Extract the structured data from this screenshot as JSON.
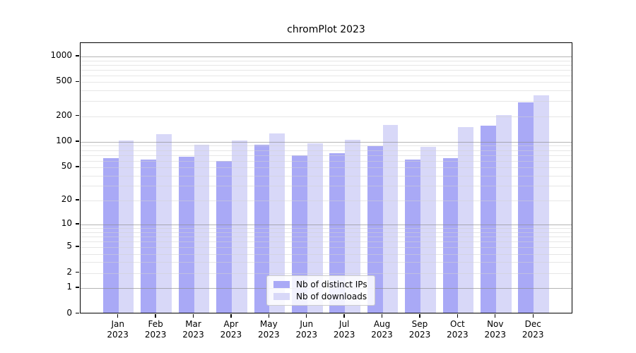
{
  "chart_data": {
    "type": "bar",
    "title": "chromPlot 2023",
    "categories": [
      "Jan 2023",
      "Feb 2023",
      "Mar 2023",
      "Apr 2023",
      "May 2023",
      "Jun 2023",
      "Jul 2023",
      "Aug 2023",
      "Sep 2023",
      "Oct 2023",
      "Nov 2023",
      "Dec 2023"
    ],
    "x_tick_line1": [
      "Jan",
      "Feb",
      "Mar",
      "Apr",
      "May",
      "Jun",
      "Jul",
      "Aug",
      "Sep",
      "Oct",
      "Nov",
      "Dec"
    ],
    "x_tick_line2": [
      "2023",
      "2023",
      "2023",
      "2023",
      "2023",
      "2023",
      "2023",
      "2023",
      "2023",
      "2023",
      "2023",
      "2023"
    ],
    "series": [
      {
        "name": "Nb of distinct IPs",
        "color": "#a9a9f6",
        "values": [
          62,
          60,
          65,
          58,
          90,
          67,
          72,
          87,
          60,
          62,
          151,
          285
        ]
      },
      {
        "name": "Nb of downloads",
        "color": "#d8d8f8",
        "values": [
          100,
          120,
          90,
          100,
          122,
          94,
          103,
          155,
          85,
          146,
          200,
          340
        ]
      }
    ],
    "y_scale": "log10(value+1)",
    "y_ticks": [
      0,
      1,
      2,
      5,
      10,
      20,
      50,
      100,
      200,
      500,
      1000
    ],
    "y_minor_gridlines": [
      2,
      3,
      4,
      5,
      6,
      7,
      8,
      9,
      20,
      30,
      40,
      50,
      60,
      70,
      80,
      90,
      200,
      300,
      400,
      500,
      600,
      700,
      800,
      900
    ],
    "y_major_gridlines": [
      1,
      10,
      100,
      1000
    ],
    "ylim": [
      0,
      1430
    ],
    "grid": "horizontal, drawn over bars",
    "legend_position": "bottom-center-inside",
    "colors": {
      "bar_dark": "#a9a9f6",
      "bar_light": "#d8d8f8",
      "grid_major": "#8c8c8c",
      "grid_minor": "#d2d2d2",
      "axis": "#000000",
      "background": "#ffffff"
    }
  }
}
